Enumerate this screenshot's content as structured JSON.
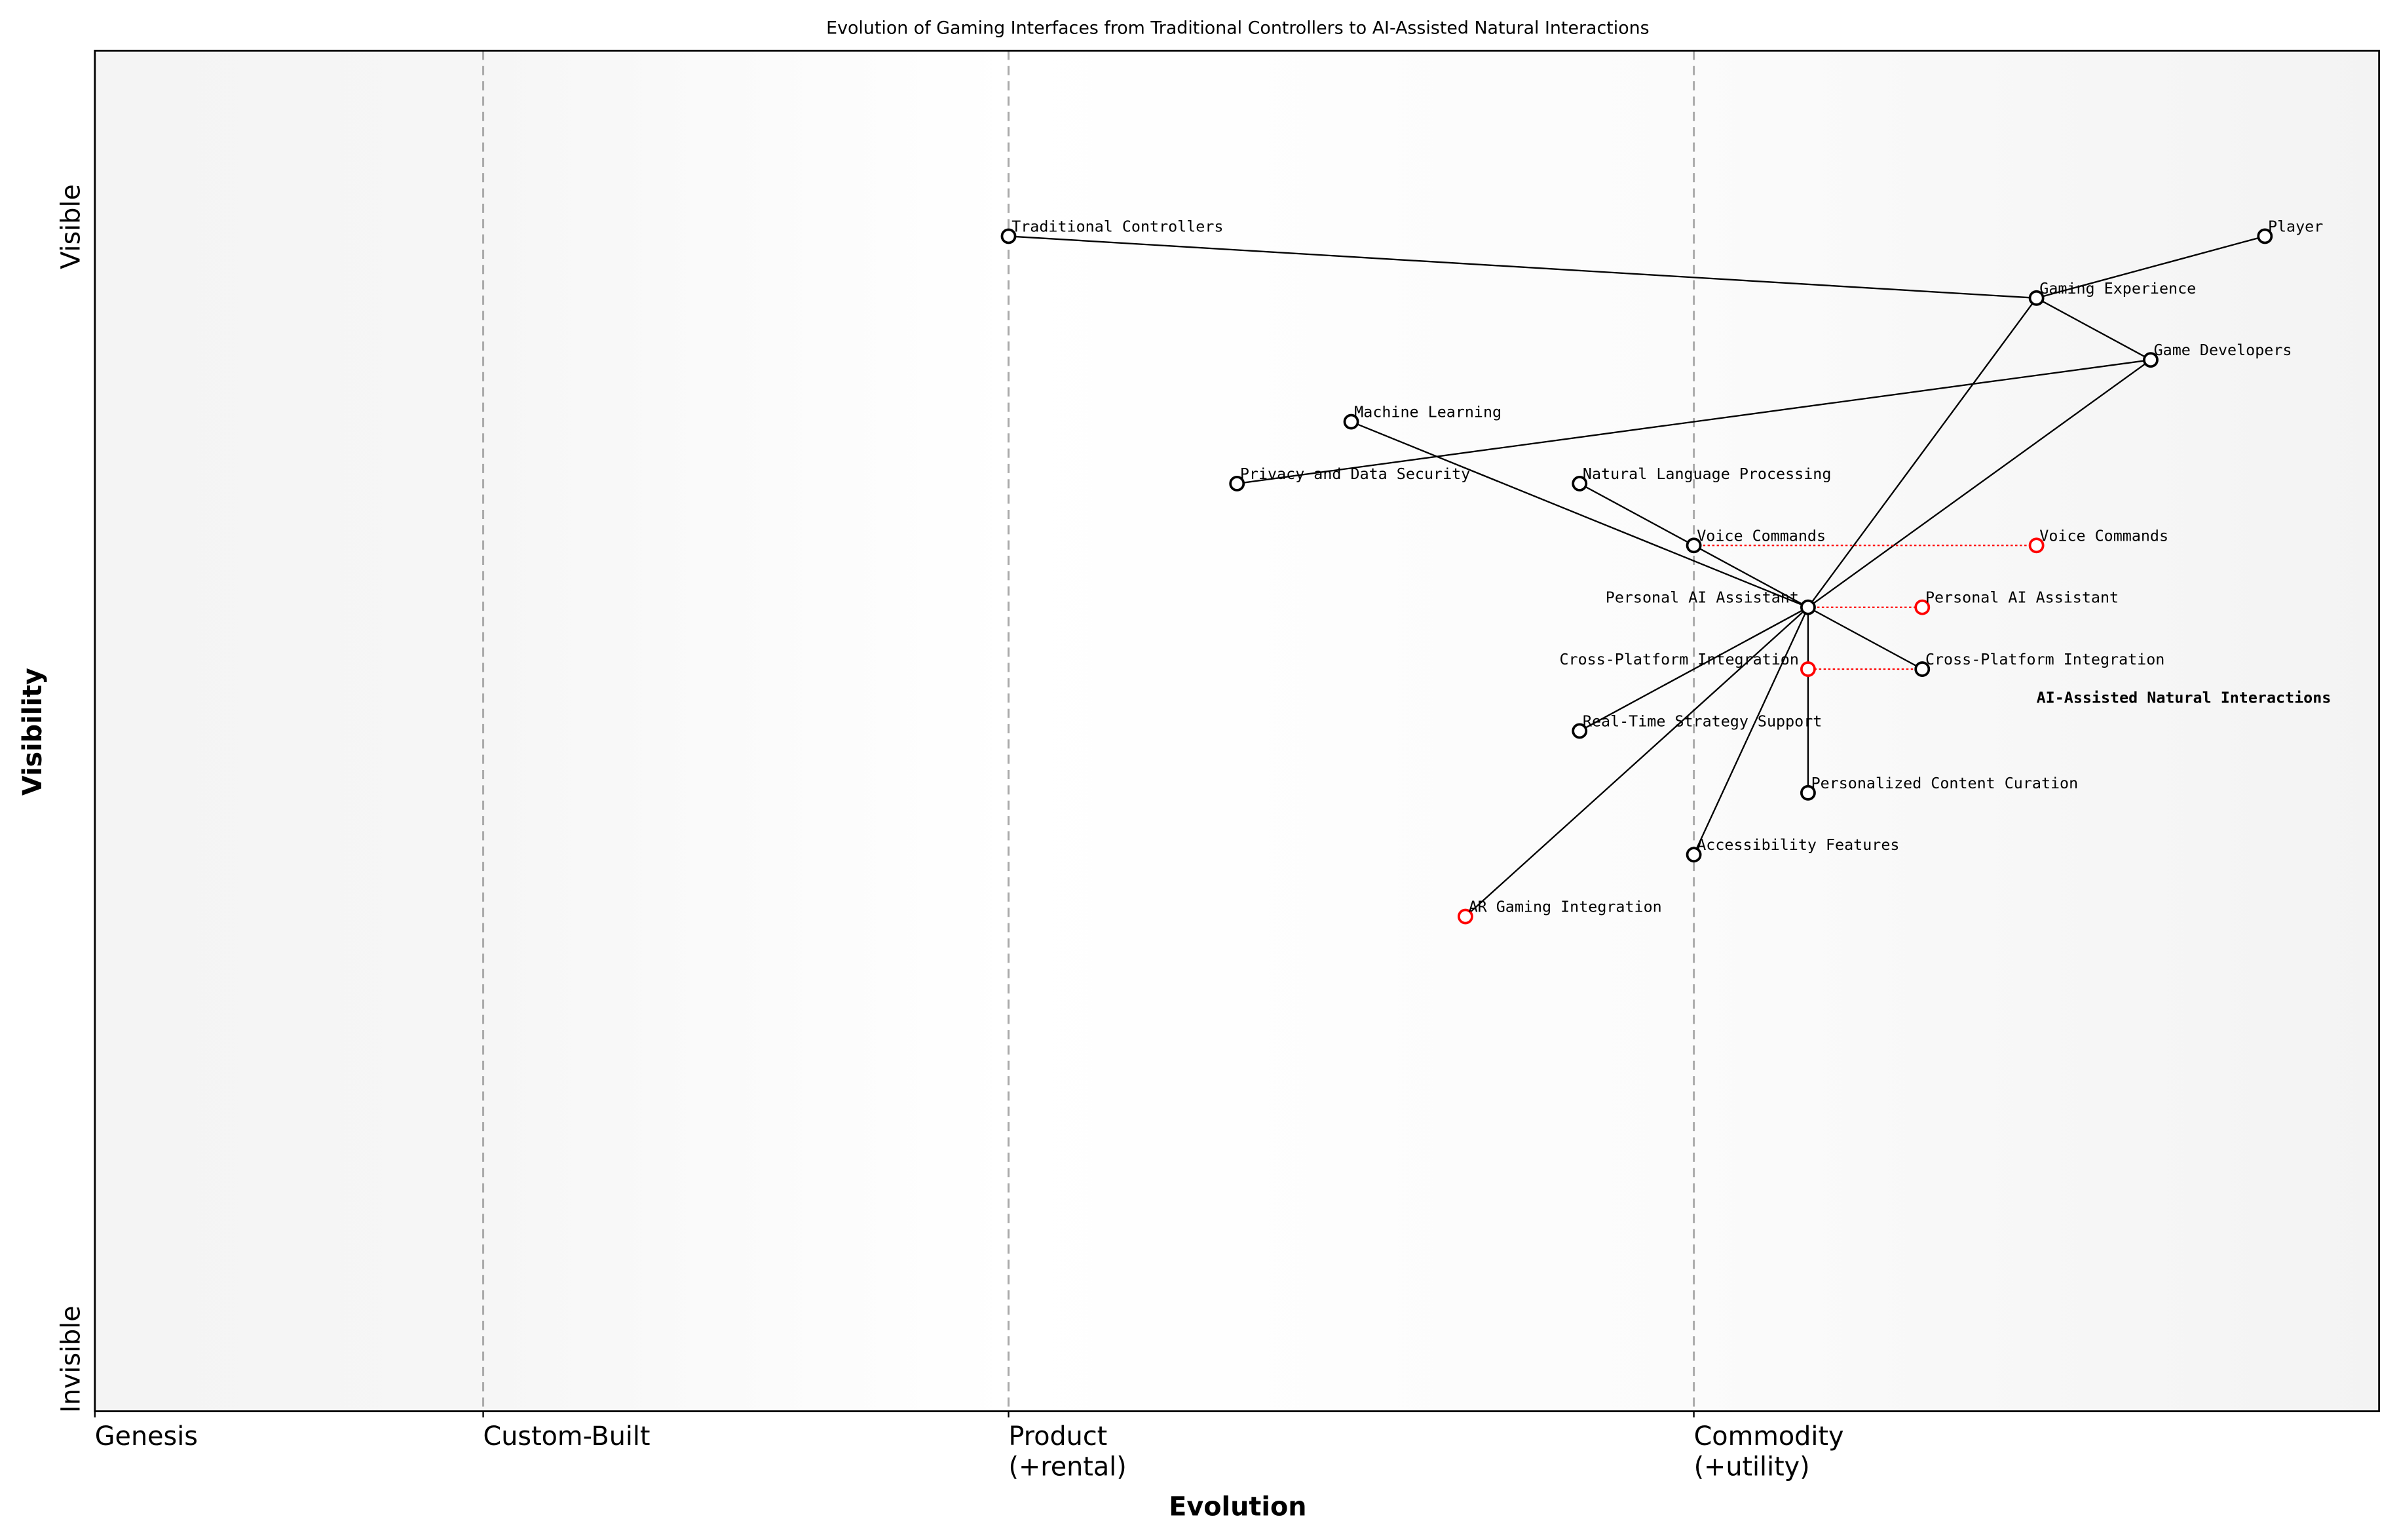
{
  "title": "Evolution of Gaming Interfaces from Traditional Controllers to AI-Assisted Natural Interactions",
  "xlabel": "Evolution",
  "ylabel": "Visibility",
  "y_ticks": {
    "top": "Visible",
    "bottom": "Invisible"
  },
  "stages": [
    {
      "label": "Genesis",
      "evolution": 0.0
    },
    {
      "label": "Custom-Built",
      "evolution": 0.17
    },
    {
      "label": "Product\n(+rental)",
      "evolution": 0.4
    },
    {
      "label": "Commodity\n(+utility)",
      "evolution": 0.7
    }
  ],
  "axis_ranges": {
    "evolution": [
      0,
      1
    ],
    "visibility": [
      0,
      1.1
    ]
  },
  "colors": {
    "node": "#000000",
    "evolved": "#ff0000",
    "link": "#000000",
    "stage_line": "#aaaaaa"
  },
  "components": [
    {
      "name": "Traditional Controllers",
      "evolution": 0.4,
      "visibility": 0.95
    },
    {
      "name": "Player",
      "evolution": 0.95,
      "visibility": 0.95
    },
    {
      "name": "Gaming Experience",
      "evolution": 0.85,
      "visibility": 0.9
    },
    {
      "name": "Game Developers",
      "evolution": 0.9,
      "visibility": 0.85
    },
    {
      "name": "Machine Learning",
      "evolution": 0.55,
      "visibility": 0.8
    },
    {
      "name": "Privacy and Data Security",
      "evolution": 0.5,
      "visibility": 0.75
    },
    {
      "name": "Natural Language Processing",
      "evolution": 0.65,
      "visibility": 0.75
    },
    {
      "name": "Voice Commands",
      "evolution": 0.7,
      "visibility": 0.7
    },
    {
      "name": "Personal AI Assistant",
      "evolution": 0.75,
      "visibility": 0.65
    },
    {
      "name": "Cross-Platform Integration",
      "evolution": 0.8,
      "visibility": 0.6
    },
    {
      "name": "Real-Time Strategy Support",
      "evolution": 0.65,
      "visibility": 0.55
    },
    {
      "name": "Personalized Content Curation",
      "evolution": 0.75,
      "visibility": 0.5
    },
    {
      "name": "Accessibility Features",
      "evolution": 0.7,
      "visibility": 0.45
    },
    {
      "name": "AR Gaming Integration",
      "evolution": 0.6,
      "visibility": 0.4,
      "evolved": true
    }
  ],
  "evolved_components": [
    {
      "name": "Voice Commands",
      "from": 0.7,
      "evolution": 0.85,
      "visibility": 0.7
    },
    {
      "name": "Personal AI Assistant",
      "from": 0.75,
      "evolution": 0.8,
      "visibility": 0.65
    },
    {
      "name": "Cross-Platform Integration",
      "from": 0.8,
      "evolution": 0.75,
      "visibility": 0.6
    }
  ],
  "links": [
    [
      "Traditional Controllers",
      "Gaming Experience"
    ],
    [
      "Player",
      "Gaming Experience"
    ],
    [
      "Gaming Experience",
      "Game Developers"
    ],
    [
      "Game Developers",
      "Privacy and Data Security"
    ],
    [
      "Gaming Experience",
      "Personal AI Assistant"
    ],
    [
      "Game Developers",
      "Personal AI Assistant"
    ],
    [
      "Machine Learning",
      "Personal AI Assistant"
    ],
    [
      "Natural Language Processing",
      "Voice Commands"
    ],
    [
      "Voice Commands",
      "Personal AI Assistant"
    ],
    [
      "Personal AI Assistant",
      "Cross-Platform Integration"
    ],
    [
      "Personal AI Assistant",
      "Real-Time Strategy Support"
    ],
    [
      "Personal AI Assistant",
      "Personalized Content Curation"
    ],
    [
      "Personal AI Assistant",
      "Accessibility Features"
    ],
    [
      "Personal AI Assistant",
      "AR Gaming Integration"
    ]
  ],
  "annotation": {
    "text": "AI-Assisted Natural Interactions",
    "evolution": 0.85,
    "visibility": 0.6
  }
}
